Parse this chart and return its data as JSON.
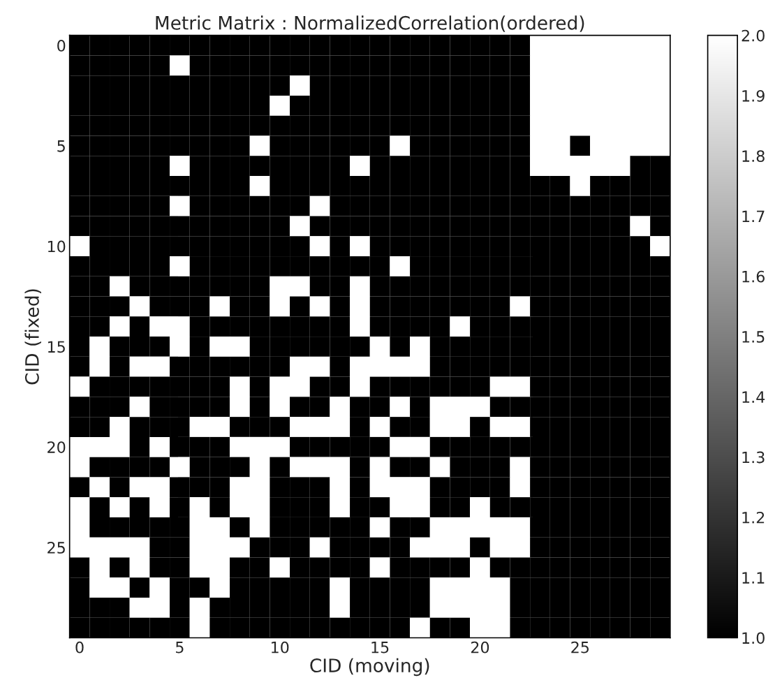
{
  "chart_data": {
    "type": "heatmap",
    "title": "Metric Matrix : NormalizedCorrelation(ordered)",
    "xlabel": "CID (moving)",
    "ylabel": "CID (fixed)",
    "categories": [
      "0",
      null,
      null,
      null,
      null,
      "5",
      null,
      null,
      null,
      null,
      "10",
      null,
      null,
      null,
      null,
      "15",
      null,
      null,
      null,
      null,
      "20",
      null,
      null,
      null,
      null,
      "25",
      null,
      null,
      null,
      null
    ],
    "y_categories": [
      "0",
      null,
      null,
      null,
      null,
      "5",
      null,
      null,
      null,
      null,
      "10",
      null,
      null,
      null,
      null,
      "15",
      null,
      null,
      null,
      null,
      "20",
      null,
      null,
      null,
      null,
      "25",
      null,
      null,
      null,
      null
    ],
    "cells": [
      [
        1,
        1,
        1,
        1,
        1,
        1,
        1,
        1,
        1,
        1,
        1,
        1,
        1,
        1,
        1,
        1,
        1,
        1,
        1,
        1,
        1,
        1,
        1,
        2,
        2,
        2,
        2,
        2,
        2,
        2
      ],
      [
        1,
        1,
        1,
        1,
        1,
        2,
        1,
        1,
        1,
        1,
        1,
        1,
        1,
        1,
        1,
        1,
        1,
        1,
        1,
        1,
        1,
        1,
        1,
        2,
        2,
        2,
        2,
        2,
        2,
        2
      ],
      [
        1,
        1,
        1,
        1,
        1,
        1,
        1,
        1,
        1,
        1,
        1,
        2,
        1,
        1,
        1,
        1,
        1,
        1,
        1,
        1,
        1,
        1,
        1,
        2,
        2,
        2,
        2,
        2,
        2,
        2
      ],
      [
        1,
        1,
        1,
        1,
        1,
        1,
        1,
        1,
        1,
        1,
        2,
        1,
        1,
        1,
        1,
        1,
        1,
        1,
        1,
        1,
        1,
        1,
        1,
        2,
        2,
        2,
        2,
        2,
        2,
        2
      ],
      [
        1,
        1,
        1,
        1,
        1,
        1,
        1,
        1,
        1,
        1,
        1,
        1,
        1,
        1,
        1,
        1,
        1,
        1,
        1,
        1,
        1,
        1,
        1,
        2,
        2,
        2,
        2,
        2,
        2,
        2
      ],
      [
        1,
        1,
        1,
        1,
        1,
        1,
        1,
        1,
        1,
        2,
        1,
        1,
        1,
        1,
        1,
        1,
        2,
        1,
        1,
        1,
        1,
        1,
        1,
        2,
        2,
        1,
        2,
        2,
        2,
        2
      ],
      [
        1,
        1,
        1,
        1,
        1,
        2,
        1,
        1,
        1,
        1,
        1,
        1,
        1,
        1,
        2,
        1,
        1,
        1,
        1,
        1,
        1,
        1,
        1,
        2,
        2,
        2,
        2,
        2,
        1,
        1
      ],
      [
        1,
        1,
        1,
        1,
        1,
        1,
        1,
        1,
        1,
        2,
        1,
        1,
        1,
        1,
        1,
        1,
        1,
        1,
        1,
        1,
        1,
        1,
        1,
        1,
        1,
        2,
        1,
        1,
        1,
        1
      ],
      [
        1,
        1,
        1,
        1,
        1,
        2,
        1,
        1,
        1,
        1,
        1,
        1,
        2,
        1,
        1,
        1,
        1,
        1,
        1,
        1,
        1,
        1,
        1,
        1,
        1,
        1,
        1,
        1,
        1,
        1
      ],
      [
        1,
        1,
        1,
        1,
        1,
        1,
        1,
        1,
        1,
        1,
        1,
        2,
        1,
        1,
        1,
        1,
        1,
        1,
        1,
        1,
        1,
        1,
        1,
        1,
        1,
        1,
        1,
        1,
        2,
        1
      ],
      [
        2,
        1,
        1,
        1,
        1,
        1,
        1,
        1,
        1,
        1,
        1,
        1,
        2,
        1,
        2,
        1,
        1,
        1,
        1,
        1,
        1,
        1,
        1,
        1,
        1,
        1,
        1,
        1,
        1,
        2
      ],
      [
        1,
        1,
        1,
        1,
        1,
        2,
        1,
        1,
        1,
        1,
        1,
        1,
        1,
        1,
        1,
        1,
        2,
        1,
        1,
        1,
        1,
        1,
        1,
        1,
        1,
        1,
        1,
        1,
        1,
        1
      ],
      [
        1,
        1,
        2,
        1,
        1,
        1,
        1,
        1,
        1,
        1,
        2,
        2,
        1,
        1,
        2,
        1,
        1,
        1,
        1,
        1,
        1,
        1,
        1,
        1,
        1,
        1,
        1,
        1,
        1,
        1
      ],
      [
        1,
        1,
        1,
        2,
        1,
        1,
        1,
        2,
        1,
        1,
        2,
        1,
        2,
        1,
        2,
        1,
        1,
        1,
        1,
        1,
        1,
        1,
        2,
        1,
        1,
        1,
        1,
        1,
        1,
        1
      ],
      [
        1,
        1,
        2,
        1,
        2,
        2,
        1,
        1,
        1,
        1,
        1,
        1,
        1,
        1,
        2,
        1,
        1,
        1,
        1,
        2,
        1,
        1,
        1,
        1,
        1,
        1,
        1,
        1,
        1,
        1
      ],
      [
        1,
        2,
        1,
        1,
        1,
        2,
        1,
        2,
        2,
        1,
        1,
        1,
        1,
        1,
        1,
        2,
        1,
        2,
        1,
        1,
        1,
        1,
        1,
        1,
        1,
        1,
        1,
        1,
        1,
        1
      ],
      [
        1,
        2,
        1,
        2,
        2,
        1,
        1,
        1,
        1,
        1,
        1,
        2,
        2,
        1,
        2,
        2,
        2,
        2,
        1,
        1,
        1,
        1,
        1,
        1,
        1,
        1,
        1,
        1,
        1,
        1
      ],
      [
        2,
        1,
        1,
        1,
        1,
        1,
        1,
        1,
        2,
        1,
        2,
        2,
        1,
        1,
        2,
        1,
        1,
        1,
        1,
        1,
        1,
        2,
        2,
        1,
        1,
        1,
        1,
        1,
        1,
        1
      ],
      [
        1,
        1,
        1,
        2,
        1,
        1,
        1,
        1,
        2,
        1,
        2,
        1,
        1,
        2,
        1,
        1,
        2,
        1,
        2,
        2,
        2,
        1,
        1,
        1,
        1,
        1,
        1,
        1,
        1,
        1
      ],
      [
        1,
        1,
        2,
        1,
        1,
        1,
        2,
        2,
        1,
        1,
        1,
        2,
        2,
        2,
        1,
        2,
        1,
        1,
        2,
        2,
        1,
        2,
        2,
        1,
        1,
        1,
        1,
        1,
        1,
        1
      ],
      [
        2,
        2,
        2,
        1,
        2,
        1,
        1,
        1,
        2,
        2,
        2,
        1,
        1,
        1,
        1,
        1,
        2,
        2,
        1,
        1,
        1,
        1,
        1,
        1,
        1,
        1,
        1,
        1,
        1,
        1
      ],
      [
        2,
        1,
        1,
        1,
        1,
        2,
        1,
        1,
        1,
        2,
        1,
        2,
        2,
        2,
        1,
        2,
        1,
        1,
        2,
        1,
        1,
        1,
        2,
        1,
        1,
        1,
        1,
        1,
        1,
        1
      ],
      [
        1,
        2,
        1,
        2,
        2,
        1,
        1,
        1,
        2,
        2,
        1,
        1,
        1,
        2,
        1,
        2,
        2,
        2,
        1,
        1,
        1,
        1,
        2,
        1,
        1,
        1,
        1,
        1,
        1,
        1
      ],
      [
        2,
        1,
        2,
        1,
        2,
        1,
        2,
        1,
        2,
        2,
        1,
        1,
        1,
        2,
        1,
        1,
        2,
        2,
        1,
        1,
        2,
        1,
        1,
        1,
        1,
        1,
        1,
        1,
        1,
        1
      ],
      [
        2,
        1,
        1,
        1,
        1,
        1,
        2,
        2,
        1,
        2,
        1,
        1,
        1,
        1,
        1,
        2,
        1,
        1,
        2,
        2,
        2,
        2,
        2,
        1,
        1,
        1,
        1,
        1,
        1,
        1
      ],
      [
        2,
        2,
        2,
        2,
        1,
        1,
        2,
        2,
        2,
        1,
        1,
        1,
        2,
        1,
        1,
        1,
        1,
        2,
        2,
        2,
        1,
        2,
        2,
        1,
        1,
        1,
        1,
        1,
        1,
        1
      ],
      [
        1,
        2,
        1,
        2,
        1,
        1,
        2,
        2,
        1,
        1,
        2,
        1,
        1,
        1,
        1,
        2,
        1,
        1,
        1,
        1,
        2,
        1,
        1,
        1,
        1,
        1,
        1,
        1,
        1,
        1
      ],
      [
        1,
        2,
        2,
        1,
        2,
        1,
        1,
        2,
        1,
        1,
        1,
        1,
        1,
        2,
        1,
        1,
        1,
        1,
        2,
        2,
        2,
        2,
        1,
        1,
        1,
        1,
        1,
        1,
        1,
        1
      ],
      [
        1,
        1,
        1,
        2,
        2,
        1,
        2,
        1,
        1,
        1,
        1,
        1,
        1,
        2,
        1,
        1,
        1,
        1,
        2,
        2,
        2,
        2,
        1,
        1,
        1,
        1,
        1,
        1,
        1,
        1
      ],
      [
        1,
        1,
        1,
        1,
        1,
        1,
        2,
        1,
        1,
        1,
        1,
        1,
        1,
        1,
        1,
        1,
        1,
        2,
        1,
        1,
        2,
        2,
        1,
        1,
        1,
        1,
        1,
        1,
        1,
        1
      ]
    ],
    "clim": [
      1.0,
      2.0
    ],
    "cticks": [
      {
        "value": 1.0,
        "label": "1.0"
      },
      {
        "value": 1.1,
        "label": "1.1"
      },
      {
        "value": 1.2,
        "label": "1.2"
      },
      {
        "value": 1.3,
        "label": "1.3"
      },
      {
        "value": 1.4,
        "label": "1.4"
      },
      {
        "value": 1.5,
        "label": "1.5"
      },
      {
        "value": 1.6,
        "label": "1.6"
      },
      {
        "value": 1.7,
        "label": "1.7"
      },
      {
        "value": 1.8,
        "label": "1.8"
      },
      {
        "value": 1.9,
        "label": "1.9"
      },
      {
        "value": 2.0,
        "label": "2.0"
      }
    ]
  }
}
